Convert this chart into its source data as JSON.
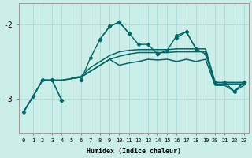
{
  "xlabel": "Humidex (Indice chaleur)",
  "bg_color": "#cceee8",
  "grid_color": "#aaddda",
  "line_color": "#006666",
  "xlim": [
    -0.5,
    23.5
  ],
  "ylim": [
    -3.45,
    -1.72
  ],
  "yticks": [
    -3,
    -2
  ],
  "ytick_labels": [
    "-3",
    "-2"
  ],
  "series": {
    "line_jagged_marked": [
      -3.18,
      -2.97,
      -2.75,
      -2.75,
      -3.02,
      null,
      -2.75,
      null,
      -2.2,
      -2.03,
      -1.97,
      -2.12,
      null,
      null,
      -2.4,
      null,
      -2.18,
      -2.1,
      -2.33,
      null,
      null,
      -2.78,
      -2.9,
      -2.78
    ],
    "line_smooth_high": [
      null,
      null,
      null,
      -2.75,
      null,
      -2.72,
      -2.7,
      -2.58,
      -2.5,
      -2.42,
      -2.37,
      -2.35,
      -2.34,
      -2.34,
      -2.34,
      -2.34,
      -2.33,
      -2.33,
      -2.33,
      -2.33,
      -2.78,
      -2.78,
      -2.78,
      -2.78
    ],
    "line_smooth_mid": [
      -3.18,
      -2.97,
      -2.75,
      -2.75,
      -2.75,
      -2.73,
      -2.71,
      -2.63,
      -2.55,
      -2.47,
      -2.43,
      -2.4,
      -2.38,
      -2.38,
      -2.38,
      -2.38,
      -2.37,
      -2.37,
      -2.37,
      -2.37,
      -2.8,
      -2.8,
      -2.8,
      -2.8
    ],
    "line_bottom_flat": [
      -3.18,
      -2.97,
      -2.75,
      -2.75,
      -2.75,
      -2.73,
      -2.71,
      -2.63,
      -2.55,
      -2.47,
      -2.55,
      -2.52,
      -2.5,
      -2.47,
      -2.48,
      -2.47,
      -2.5,
      -2.47,
      -2.5,
      -2.47,
      -2.82,
      -2.82,
      -2.9,
      -2.82
    ],
    "line_high_marked": [
      null,
      null,
      -2.75,
      -2.75,
      -3.02,
      null,
      -2.75,
      -2.45,
      -2.2,
      -2.03,
      -1.97,
      -2.12,
      -2.27,
      -2.27,
      -2.4,
      -2.35,
      -2.15,
      -2.1,
      -2.33,
      -2.4,
      -2.78,
      null,
      -2.9,
      -2.78
    ]
  }
}
